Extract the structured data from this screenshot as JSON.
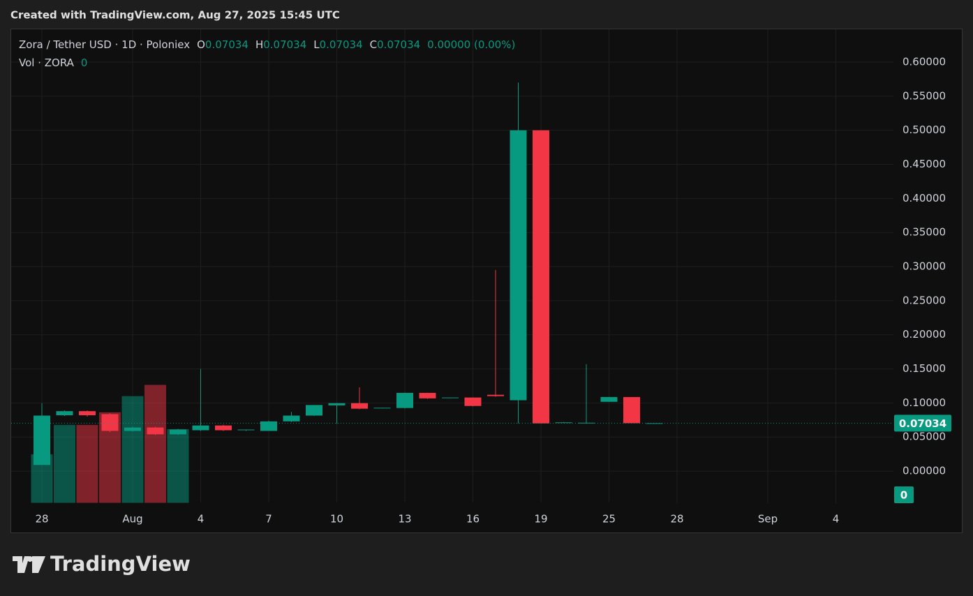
{
  "header": {
    "title": "Created with TradingView.com, Aug 27, 2025 15:45 UTC"
  },
  "chart_data": {
    "type": "candlestick",
    "legend": {
      "symbol": "Zora / Tether USD · 1D · Poloniex",
      "ohlc": [
        {
          "key": "O",
          "value": "0.07034"
        },
        {
          "key": "H",
          "value": "0.07034"
        },
        {
          "key": "L",
          "value": "0.07034"
        },
        {
          "key": "C",
          "value": "0.07034"
        }
      ],
      "change": "0.00000 (0.00%)",
      "volume_label": "Vol · ZORA",
      "volume_value": "0"
    },
    "categories": [
      "28",
      null,
      null,
      null,
      "Aug",
      null,
      null,
      "4",
      null,
      null,
      "7",
      null,
      null,
      "10",
      null,
      null,
      "13",
      null,
      null,
      "16",
      null,
      null,
      "19",
      null,
      null,
      "25",
      null,
      null,
      "28",
      null,
      null,
      null,
      "Sep",
      null,
      null,
      "4"
    ],
    "open": [
      0.009,
      0.082,
      0.088,
      0.0836,
      0.059,
      0.064,
      0.054,
      0.06,
      0.067,
      0.06,
      0.059,
      0.073,
      0.0815,
      0.0965,
      0.0997,
      0.092,
      0.0926,
      0.1148,
      0.107,
      0.108,
      0.112,
      0.104,
      0.5,
      0.0715,
      0.0705,
      0.1017,
      0.1087,
      0.07034,
      null,
      null,
      null,
      null,
      null,
      null,
      null,
      null
    ],
    "high": [
      0.0997,
      0.089,
      0.089,
      0.085,
      0.065,
      0.065,
      0.062,
      0.15,
      0.068,
      0.061,
      0.074,
      0.087,
      0.097,
      0.1,
      0.123,
      0.093,
      0.115,
      0.115,
      0.108,
      0.108,
      0.295,
      0.57,
      0.5,
      0.072,
      0.157,
      0.1087,
      0.1087,
      0.07034,
      null,
      null,
      null,
      null,
      null,
      null,
      null,
      null
    ],
    "low": [
      0.009,
      0.081,
      0.08,
      0.057,
      0.058,
      0.053,
      0.053,
      0.059,
      0.059,
      0.059,
      0.059,
      0.072,
      0.081,
      0.0695,
      0.091,
      0.092,
      0.092,
      0.106,
      0.107,
      0.095,
      0.109,
      0.07,
      0.07,
      0.071,
      0.07,
      0.1017,
      0.07034,
      0.07034,
      null,
      null,
      null,
      null,
      null,
      null,
      null,
      null
    ],
    "close": [
      0.0815,
      0.088,
      0.082,
      0.059,
      0.064,
      0.054,
      0.061,
      0.067,
      0.06,
      0.061,
      0.073,
      0.0815,
      0.097,
      0.0997,
      0.0916,
      0.093,
      0.1148,
      0.1067,
      0.108,
      0.0956,
      0.11,
      0.5,
      0.07,
      0.0715,
      0.071,
      0.1087,
      0.07034,
      0.07034,
      null,
      null,
      null,
      null,
      null,
      null,
      null,
      null
    ],
    "volume": [
      70,
      112,
      112,
      130,
      153,
      169,
      106,
      1,
      1,
      1,
      1,
      1,
      1,
      1,
      1,
      1,
      1,
      1,
      1,
      1,
      1,
      1,
      1,
      1,
      1,
      1,
      1,
      1,
      null,
      null,
      null,
      null,
      null,
      null,
      null,
      null
    ],
    "up_color": "#089981",
    "down_color": "#f23645",
    "ylim": [
      -0.047,
      0.643
    ],
    "yticks": [
      {
        "value": 0,
        "label": "0.00000"
      },
      {
        "value": 0.05,
        "label": "0.05000"
      },
      {
        "value": 0.1,
        "label": "0.10000"
      },
      {
        "value": 0.15,
        "label": "0.15000"
      },
      {
        "value": 0.2,
        "label": "0.20000"
      },
      {
        "value": 0.25,
        "label": "0.25000"
      },
      {
        "value": 0.3,
        "label": "0.30000"
      },
      {
        "value": 0.35,
        "label": "0.35000"
      },
      {
        "value": 0.4,
        "label": "0.40000"
      },
      {
        "value": 0.45,
        "label": "0.45000"
      },
      {
        "value": 0.5,
        "label": "0.50000"
      },
      {
        "value": 0.55,
        "label": "0.55000"
      },
      {
        "value": 0.6,
        "label": "0.60000"
      }
    ],
    "last_price": {
      "value": 0.07034,
      "label": "0.07034"
    },
    "last_volume": "0",
    "grid": true
  },
  "footer": {
    "brand": "TradingView"
  }
}
